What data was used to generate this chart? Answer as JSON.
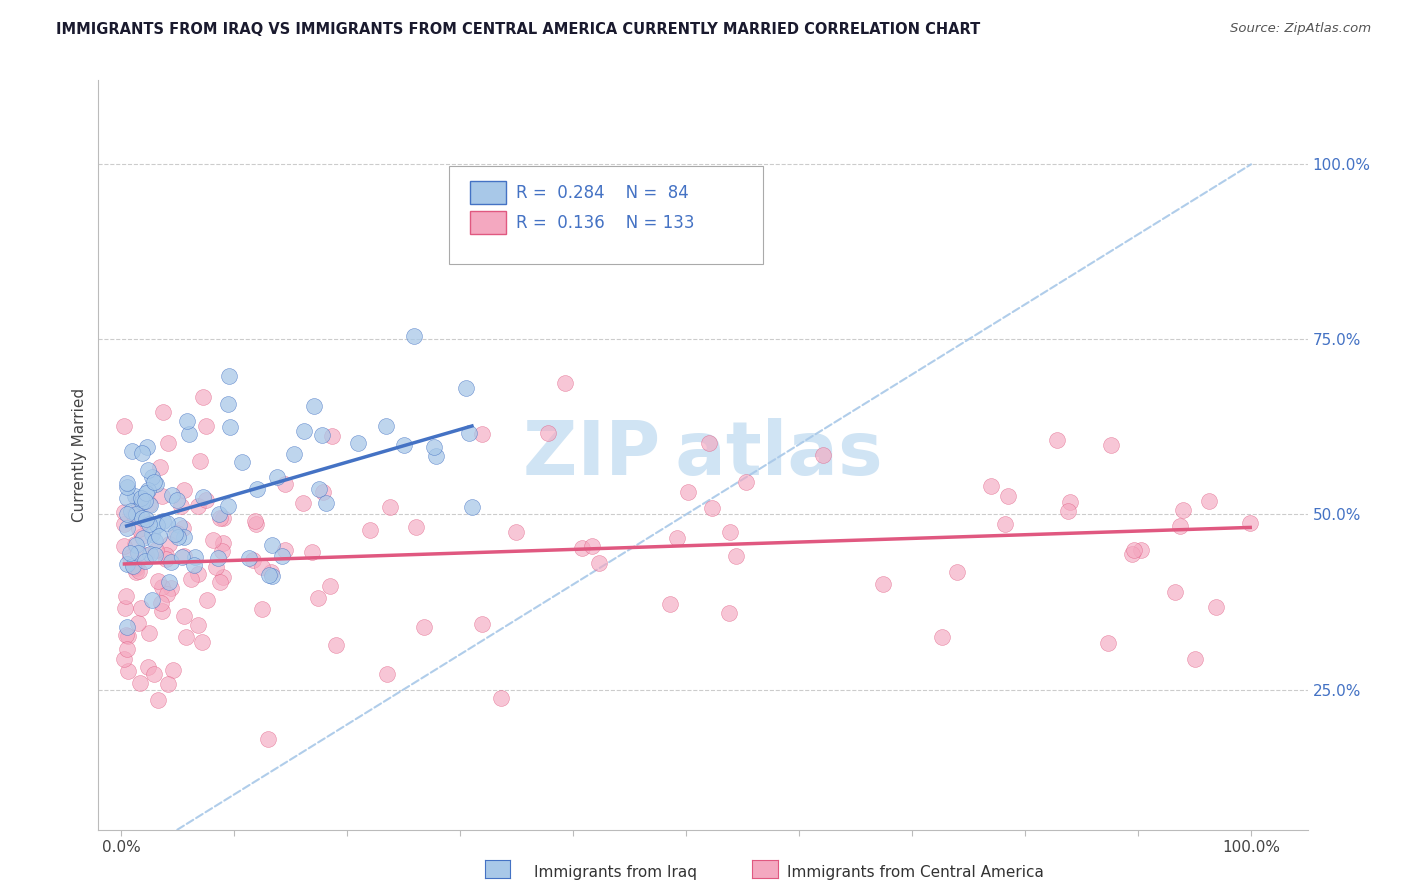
{
  "title": "IMMIGRANTS FROM IRAQ VS IMMIGRANTS FROM CENTRAL AMERICA CURRENTLY MARRIED CORRELATION CHART",
  "source": "Source: ZipAtlas.com",
  "ylabel": "Currently Married",
  "color_blue": "#a8c8e8",
  "color_pink": "#f4a8c0",
  "line_blue": "#4472c4",
  "line_pink": "#e05880",
  "dashed_line_color": "#a8c8e8",
  "watermark_color": "#d0e4f4",
  "legend_r1": "R = 0.284",
  "legend_n1": "N =  84",
  "legend_r2": "R = 0.136",
  "legend_n2": "N = 133",
  "iraq_blue_label": "Immigrants from Iraq",
  "central_pink_label": "Immigrants from Central America",
  "ytick_positions": [
    0.25,
    0.5,
    0.75,
    1.0
  ],
  "ytick_labels": [
    "25.0%",
    "50.0%",
    "75.0%",
    "100.0%"
  ],
  "xlim": [
    -0.02,
    1.05
  ],
  "ylim": [
    0.05,
    1.12
  ]
}
